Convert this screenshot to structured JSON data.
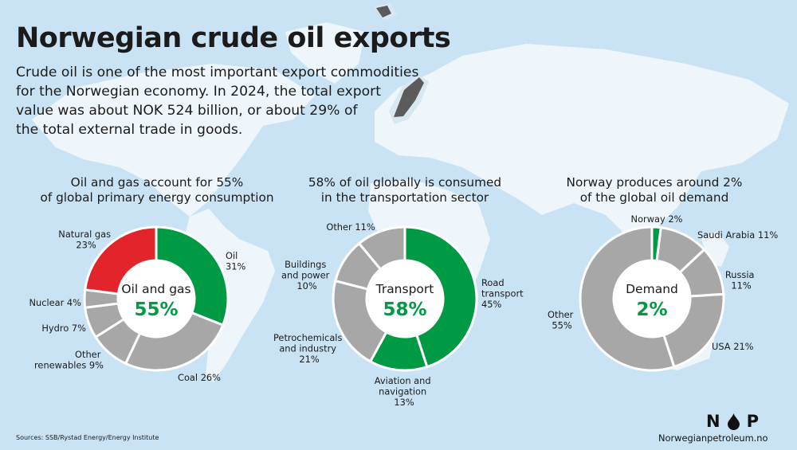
{
  "title": "Norwegian crude oil exports",
  "intro_lines": [
    "Crude oil is one of the most important export commodities",
    "for the Norwegian economy. In 2024, the total export",
    "value was about NOK 524 billion, or about 29% of",
    "the total external trade in goods."
  ],
  "colors": {
    "green": "#009a44",
    "red": "#e3242b",
    "grey": "#a7a7a7",
    "ocean": "#c9e3f4",
    "land": "#eef6fb"
  },
  "chart_data": [
    {
      "type": "pie",
      "heading_lines": [
        "Oil and gas account for 55%",
        "of global primary energy consumption"
      ],
      "center_label": "Oil and gas",
      "center_value": "55%",
      "slices": [
        {
          "label_lines": [
            "Oil",
            "31%"
          ],
          "value": 31,
          "color": "#009a44"
        },
        {
          "label_lines": [
            "Coal 26%"
          ],
          "value": 26,
          "color": "#a7a7a7"
        },
        {
          "label_lines": [
            "Other",
            "renewables 9%"
          ],
          "value": 9,
          "color": "#a7a7a7"
        },
        {
          "label_lines": [
            "Hydro 7%"
          ],
          "value": 7,
          "color": "#a7a7a7"
        },
        {
          "label_lines": [
            "Nuclear 4%"
          ],
          "value": 4,
          "color": "#a7a7a7"
        },
        {
          "label_lines": [
            "Natural gas",
            "23%"
          ],
          "value": 23,
          "color": "#e3242b"
        }
      ]
    },
    {
      "type": "pie",
      "heading_lines": [
        "58% of oil globally is consumed",
        "in the transportation sector"
      ],
      "center_label": "Transport",
      "center_value": "58%",
      "slices": [
        {
          "label_lines": [
            "Road",
            "transport",
            "45%"
          ],
          "value": 45,
          "color": "#009a44"
        },
        {
          "label_lines": [
            "Aviation and",
            "navigation",
            "13%"
          ],
          "value": 13,
          "color": "#009a44"
        },
        {
          "label_lines": [
            "Petrochemicals",
            "and industry",
            "21%"
          ],
          "value": 21,
          "color": "#a7a7a7"
        },
        {
          "label_lines": [
            "Buildings",
            "and power",
            "10%"
          ],
          "value": 10,
          "color": "#a7a7a7"
        },
        {
          "label_lines": [
            "Other 11%"
          ],
          "value": 11,
          "color": "#a7a7a7"
        }
      ]
    },
    {
      "type": "pie",
      "heading_lines": [
        "Norway produces around 2%",
        "of the global oil demand"
      ],
      "center_label": "Demand",
      "center_value": "2%",
      "slices": [
        {
          "label_lines": [
            "Norway 2%"
          ],
          "value": 2,
          "color": "#009a44"
        },
        {
          "label_lines": [
            "Saudi Arabia 11%"
          ],
          "value": 11,
          "color": "#a7a7a7"
        },
        {
          "label_lines": [
            "Russia",
            "11%"
          ],
          "value": 11,
          "color": "#a7a7a7"
        },
        {
          "label_lines": [
            "USA 21%"
          ],
          "value": 21,
          "color": "#a7a7a7"
        },
        {
          "label_lines": [
            "Other",
            "55%"
          ],
          "value": 55,
          "color": "#a7a7a7"
        }
      ]
    }
  ],
  "sources": "Sources: SSB/Rystad Energy/Energy Institute",
  "logo": {
    "left": "N",
    "right": "P"
  },
  "site": "Norwegianpetroleum.no"
}
